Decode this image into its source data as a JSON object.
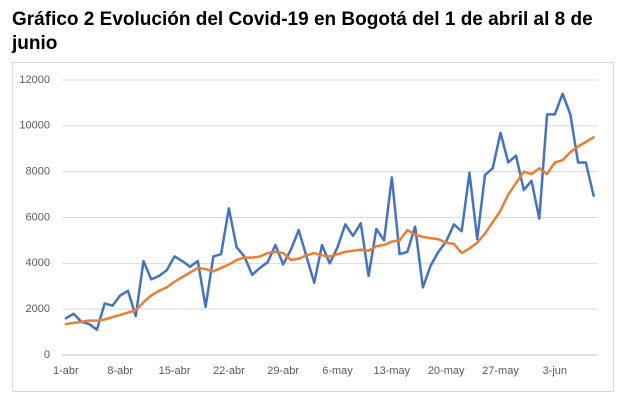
{
  "chart_data": {
    "type": "line",
    "title": "Gráfico 2 Evolución del Covid-19 en Bogotá del 1 de abril al 8 de junio",
    "categories": [
      "1-abr",
      null,
      null,
      null,
      null,
      null,
      null,
      "8-abr",
      null,
      null,
      null,
      null,
      null,
      null,
      "15-abr",
      null,
      null,
      null,
      null,
      null,
      null,
      "22-abr",
      null,
      null,
      null,
      null,
      null,
      null,
      "29-abr",
      null,
      null,
      null,
      null,
      null,
      null,
      "6-may",
      null,
      null,
      null,
      null,
      null,
      null,
      "13-may",
      null,
      null,
      null,
      null,
      null,
      null,
      "20-may",
      null,
      null,
      null,
      null,
      null,
      null,
      "27-may",
      null,
      null,
      null,
      null,
      null,
      null,
      "3-jun",
      null,
      null,
      null,
      null,
      null
    ],
    "series": [
      {
        "color": "#4472c4",
        "values": [
          1600,
          1800,
          1450,
          1350,
          1100,
          2250,
          2150,
          2600,
          2800,
          1700,
          4100,
          3300,
          3450,
          3700,
          4300,
          4100,
          3850,
          4100,
          2100,
          4300,
          4400,
          6400,
          4700,
          4300,
          3500,
          3800,
          4050,
          4800,
          3950,
          4600,
          5450,
          4300,
          3150,
          4800,
          4000,
          4700,
          5700,
          5200,
          5750,
          3450,
          5500,
          5000,
          7750,
          4400,
          4500,
          5600,
          2950,
          3900,
          4500,
          4950,
          5700,
          5400,
          7950,
          5050,
          7850,
          8150,
          9700,
          8400,
          8700,
          7200,
          7600,
          5950,
          10500,
          10500,
          11400,
          10500,
          8400,
          8400,
          6950
        ]
      },
      {
        "color": "#ed7d31",
        "values": [
          1350,
          1400,
          1450,
          1500,
          1500,
          1550,
          1650,
          1750,
          1850,
          1950,
          2300,
          2600,
          2800,
          2950,
          3200,
          3400,
          3600,
          3800,
          3750,
          3650,
          3800,
          3950,
          4150,
          4250,
          4250,
          4300,
          4450,
          4500,
          4450,
          4150,
          4200,
          4350,
          4450,
          4350,
          4300,
          4400,
          4500,
          4550,
          4600,
          4550,
          4750,
          4800,
          4950,
          5000,
          5450,
          5250,
          5150,
          5100,
          5050,
          4900,
          4850,
          4450,
          4650,
          4900,
          5300,
          5800,
          6300,
          7000,
          7500,
          8000,
          7900,
          8150,
          7900,
          8400,
          8500,
          8850,
          9100,
          9300,
          9500
        ]
      }
    ],
    "ylim": [
      0,
      12000
    ],
    "yticks": [
      0,
      2000,
      4000,
      6000,
      8000,
      10000,
      12000
    ],
    "grid": true
  }
}
